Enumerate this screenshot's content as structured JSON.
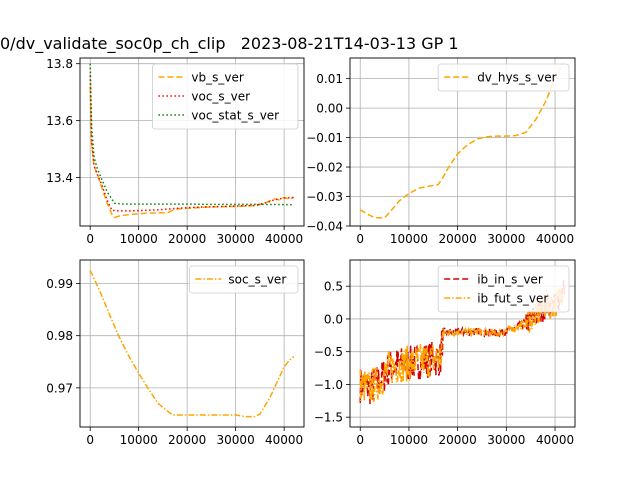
{
  "figure": {
    "suptitle": "0/dv_validate_soc0p_ch_clip   2023-08-21T14-03-13 GP 1"
  },
  "colors": {
    "orange": "#ffa500",
    "red": "#ff0000",
    "green": "#008000",
    "darkred": "#d40000",
    "grid": "#b0b0b0"
  },
  "chart_data": [
    {
      "type": "line",
      "position": "top-left",
      "xlim": [
        -2100,
        44100
      ],
      "ylim": [
        13.23,
        13.82
      ],
      "xticks": [
        0,
        10000,
        20000,
        30000,
        40000
      ],
      "yticks": [
        13.4,
        13.6,
        13.8
      ],
      "ytick_labels": [
        "13.4",
        "13.6",
        "13.8"
      ],
      "legend_placement": "upper-right",
      "grid": true,
      "series": [
        {
          "name": "vb_s_ver",
          "style": "dashed",
          "color": "#ffa500",
          "x": [
            0,
            300,
            800,
            1500,
            2500,
            3500,
            4500,
            5000,
            6000,
            8000,
            10000,
            12000,
            14000,
            16000,
            17000,
            18000,
            20000,
            22000,
            24000,
            26000,
            28000,
            30000,
            32000,
            34000,
            35000,
            36000,
            37000,
            38000,
            39000,
            40000,
            41000,
            42000
          ],
          "y": [
            13.72,
            13.52,
            13.44,
            13.41,
            13.36,
            13.31,
            13.27,
            13.26,
            13.265,
            13.27,
            13.273,
            13.275,
            13.276,
            13.277,
            13.285,
            13.29,
            13.292,
            13.294,
            13.296,
            13.297,
            13.298,
            13.299,
            13.3,
            13.302,
            13.305,
            13.31,
            13.318,
            13.325,
            13.322,
            13.33,
            13.325,
            13.33
          ]
        },
        {
          "name": "voc_s_ver",
          "style": "dotted",
          "color": "#ff0000",
          "x": [
            0,
            300,
            800,
            1500,
            2500,
            3500,
            4500,
            6000,
            8000,
            10000,
            14000,
            18000,
            22000,
            26000,
            30000,
            34000,
            36000,
            38000,
            40000,
            42000
          ],
          "y": [
            13.76,
            13.53,
            13.44,
            13.41,
            13.37,
            13.32,
            13.285,
            13.283,
            13.283,
            13.284,
            13.287,
            13.292,
            13.296,
            13.298,
            13.3,
            13.302,
            13.31,
            13.322,
            13.328,
            13.33
          ]
        },
        {
          "name": "voc_stat_s_ver",
          "style": "dotted",
          "color": "#008000",
          "x": [
            0,
            300,
            800,
            1500,
            2500,
            3500,
            5000,
            7000,
            10000,
            15000,
            20000,
            25000,
            30000,
            35000,
            40000,
            42000
          ],
          "y": [
            13.8,
            13.58,
            13.47,
            13.43,
            13.39,
            13.35,
            13.31,
            13.307,
            13.307,
            13.307,
            13.307,
            13.306,
            13.306,
            13.306,
            13.305,
            13.305
          ]
        }
      ]
    },
    {
      "type": "line",
      "position": "top-right",
      "xlim": [
        -2100,
        44100
      ],
      "ylim": [
        -0.04,
        0.017
      ],
      "xticks": [
        0,
        10000,
        20000,
        30000,
        40000
      ],
      "yticks": [
        -0.04,
        -0.03,
        -0.02,
        -0.01,
        0.0,
        0.01
      ],
      "ytick_labels": [
        "−0.04",
        "−0.03",
        "−0.02",
        "−0.01",
        "0.00",
        "0.01"
      ],
      "legend_placement": "upper-right",
      "grid": true,
      "series": [
        {
          "name": "dv_hys_s_ver",
          "style": "dashed",
          "color": "#ffa500",
          "x": [
            0,
            1500,
            3000,
            5000,
            6000,
            8000,
            10000,
            12000,
            14000,
            16000,
            17000,
            18000,
            20000,
            22000,
            24000,
            26000,
            28000,
            30000,
            32000,
            34000,
            36000,
            38000,
            40000,
            41500
          ],
          "y": [
            -0.0345,
            -0.036,
            -0.0372,
            -0.0372,
            -0.0355,
            -0.0315,
            -0.029,
            -0.0272,
            -0.0265,
            -0.026,
            -0.0235,
            -0.0205,
            -0.0155,
            -0.0125,
            -0.0105,
            -0.0097,
            -0.0095,
            -0.0095,
            -0.0093,
            -0.0082,
            -0.004,
            0.002,
            0.01,
            0.015
          ]
        }
      ]
    },
    {
      "type": "line",
      "position": "bottom-left",
      "xlim": [
        -2100,
        44100
      ],
      "ylim": [
        0.9625,
        0.9945
      ],
      "xticks": [
        0,
        10000,
        20000,
        30000,
        40000
      ],
      "yticks": [
        0.97,
        0.98,
        0.99
      ],
      "ytick_labels": [
        "0.97",
        "0.98",
        "0.99"
      ],
      "legend_placement": "upper-right",
      "grid": true,
      "series": [
        {
          "name": "soc_s_ver",
          "style": "dashdot",
          "color": "#ffa500",
          "x": [
            0,
            2000,
            4000,
            6000,
            8000,
            10000,
            12000,
            14000,
            16000,
            17000,
            18000,
            20000,
            22000,
            24000,
            26000,
            28000,
            30000,
            32000,
            34000,
            35000,
            36000,
            37000,
            38000,
            39000,
            40000,
            41000,
            42000
          ],
          "y": [
            0.9925,
            0.9885,
            0.984,
            0.9797,
            0.976,
            0.9728,
            0.9698,
            0.967,
            0.9655,
            0.9648,
            0.9648,
            0.9648,
            0.9648,
            0.9648,
            0.9648,
            0.9648,
            0.9648,
            0.9645,
            0.9645,
            0.965,
            0.9665,
            0.968,
            0.97,
            0.972,
            0.974,
            0.9752,
            0.976
          ]
        }
      ]
    },
    {
      "type": "line",
      "position": "bottom-right",
      "xlim": [
        -2100,
        44100
      ],
      "ylim": [
        -1.65,
        0.9
      ],
      "xticks": [
        0,
        10000,
        20000,
        30000,
        40000
      ],
      "yticks": [
        -1.5,
        -1.0,
        -0.5,
        0.0,
        0.5
      ],
      "ytick_labels": [
        "−1.5",
        "−1.0",
        "−0.5",
        "0.0",
        "0.5"
      ],
      "legend_placement": "upper-right",
      "grid": true,
      "series": [
        {
          "name": "ib_in_s_ver",
          "style": "dashed",
          "color": "#d40000",
          "x": [
            0,
            2000,
            4000,
            6000,
            8000,
            10000,
            12000,
            14000,
            16500,
            17000,
            20000,
            25000,
            28000,
            30000,
            33000,
            35000,
            37000,
            38000,
            40000,
            42000
          ],
          "y": [
            -1.0,
            -1.05,
            -0.95,
            -0.75,
            -0.7,
            -0.68,
            -0.65,
            -0.62,
            -0.6,
            -0.2,
            -0.2,
            -0.2,
            -0.22,
            -0.18,
            -0.1,
            0.0,
            0.1,
            0.2,
            0.2,
            0.5
          ]
        },
        {
          "name": "ib_fut_s_ver",
          "style": "dashdot",
          "color": "#ffa500",
          "x": [
            0,
            2000,
            4000,
            6000,
            8000,
            10000,
            12000,
            14000,
            16500,
            17000,
            20000,
            25000,
            28000,
            30000,
            33000,
            35000,
            37000,
            38000,
            40000,
            42000
          ],
          "y": [
            -1.0,
            -1.05,
            -0.95,
            -0.75,
            -0.7,
            -0.68,
            -0.65,
            -0.62,
            -0.6,
            -0.2,
            -0.2,
            -0.2,
            -0.22,
            -0.18,
            -0.1,
            0.0,
            0.1,
            0.2,
            0.2,
            0.5
          ]
        }
      ]
    }
  ]
}
